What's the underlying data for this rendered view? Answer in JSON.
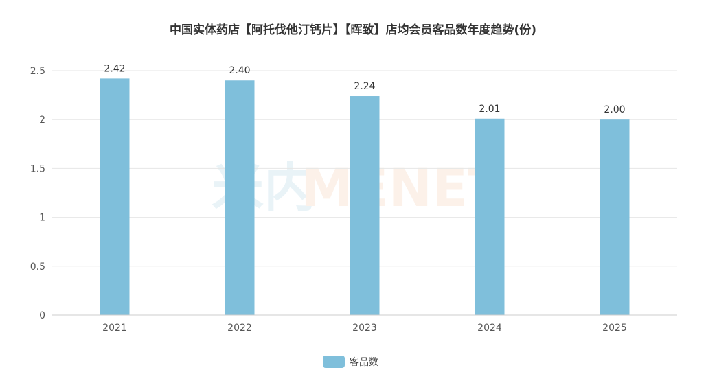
{
  "chart_data": {
    "type": "bar",
    "title": "中国实体药店【阿托伐他汀钙片】【晖致】店均会员客品数年度趋势(份)",
    "categories": [
      "2021",
      "2022",
      "2023",
      "2024",
      "2025"
    ],
    "series": [
      {
        "name": "客品数",
        "values": [
          2.42,
          2.4,
          2.24,
          2.01,
          2.0
        ],
        "color": "#7fbfdb"
      }
    ],
    "data_labels": [
      "2.42",
      "2.40",
      "2.24",
      "2.01",
      "2.00"
    ],
    "ylim": [
      0,
      2.5
    ],
    "y_ticks": [
      0,
      0.5,
      1,
      1.5,
      2,
      2.5
    ],
    "y_tick_labels": [
      "0",
      "0.5",
      "1",
      "1.5",
      "2",
      "2.5"
    ],
    "xlabel": "",
    "ylabel": "",
    "grid": true,
    "legend_position": "bottom-center",
    "colors": {
      "grid": "#e6e6e6",
      "axis": "#cccccc",
      "tick_text": "#555555",
      "label_text": "#333333"
    }
  },
  "watermark": {
    "cn_text": "米内",
    "en_text": "MENET",
    "cn_color": "#d8eaf2",
    "en_color": "#fbe6d8"
  }
}
